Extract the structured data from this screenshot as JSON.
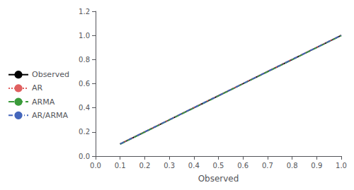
{
  "chart_data": {
    "type": "line",
    "xlabel": "Observed",
    "x": [
      0.1,
      0.2,
      0.3,
      0.4,
      0.5,
      0.6,
      0.7,
      0.8,
      0.9,
      1.0
    ],
    "series": [
      {
        "name": "Observed",
        "color": "#000000",
        "line_style": "solid",
        "values": [
          0.1,
          0.2,
          0.3,
          0.4,
          0.5,
          0.6,
          0.7,
          0.8,
          0.9,
          1.0
        ]
      },
      {
        "name": "AR",
        "color": "#e06060",
        "line_style": "dotted",
        "values": [
          0.102,
          0.202,
          0.302,
          0.402,
          0.502,
          0.602,
          0.702,
          0.802,
          0.902,
          1.002
        ]
      },
      {
        "name": "ARMA",
        "color": "#3a9a3a",
        "line_style": "dashed",
        "values": [
          0.099,
          0.199,
          0.299,
          0.399,
          0.499,
          0.599,
          0.699,
          0.799,
          0.899,
          0.999
        ]
      },
      {
        "name": "AR/ARMA",
        "color": "#4466bb",
        "line_style": "dashdot",
        "values": [
          0.101,
          0.201,
          0.301,
          0.401,
          0.501,
          0.601,
          0.701,
          0.801,
          0.901,
          1.001
        ]
      }
    ],
    "xlim": [
      0.0,
      1.0
    ],
    "ylim": [
      0.0,
      1.2
    ],
    "xticks": [
      {
        "value": 0,
        "label": "0.0"
      },
      0.1,
      0.2,
      0.3,
      0.4,
      0.5,
      0.6,
      0.7,
      0.8,
      0.9,
      {
        "value": 1,
        "label": "1.0"
      }
    ],
    "yticks": [
      {
        "value": 0,
        "label": "0.0"
      },
      0.2,
      0.4,
      0.6,
      0.8,
      {
        "value": 1,
        "label": "1.0"
      },
      1.2
    ],
    "grid": false,
    "legend": "left"
  }
}
